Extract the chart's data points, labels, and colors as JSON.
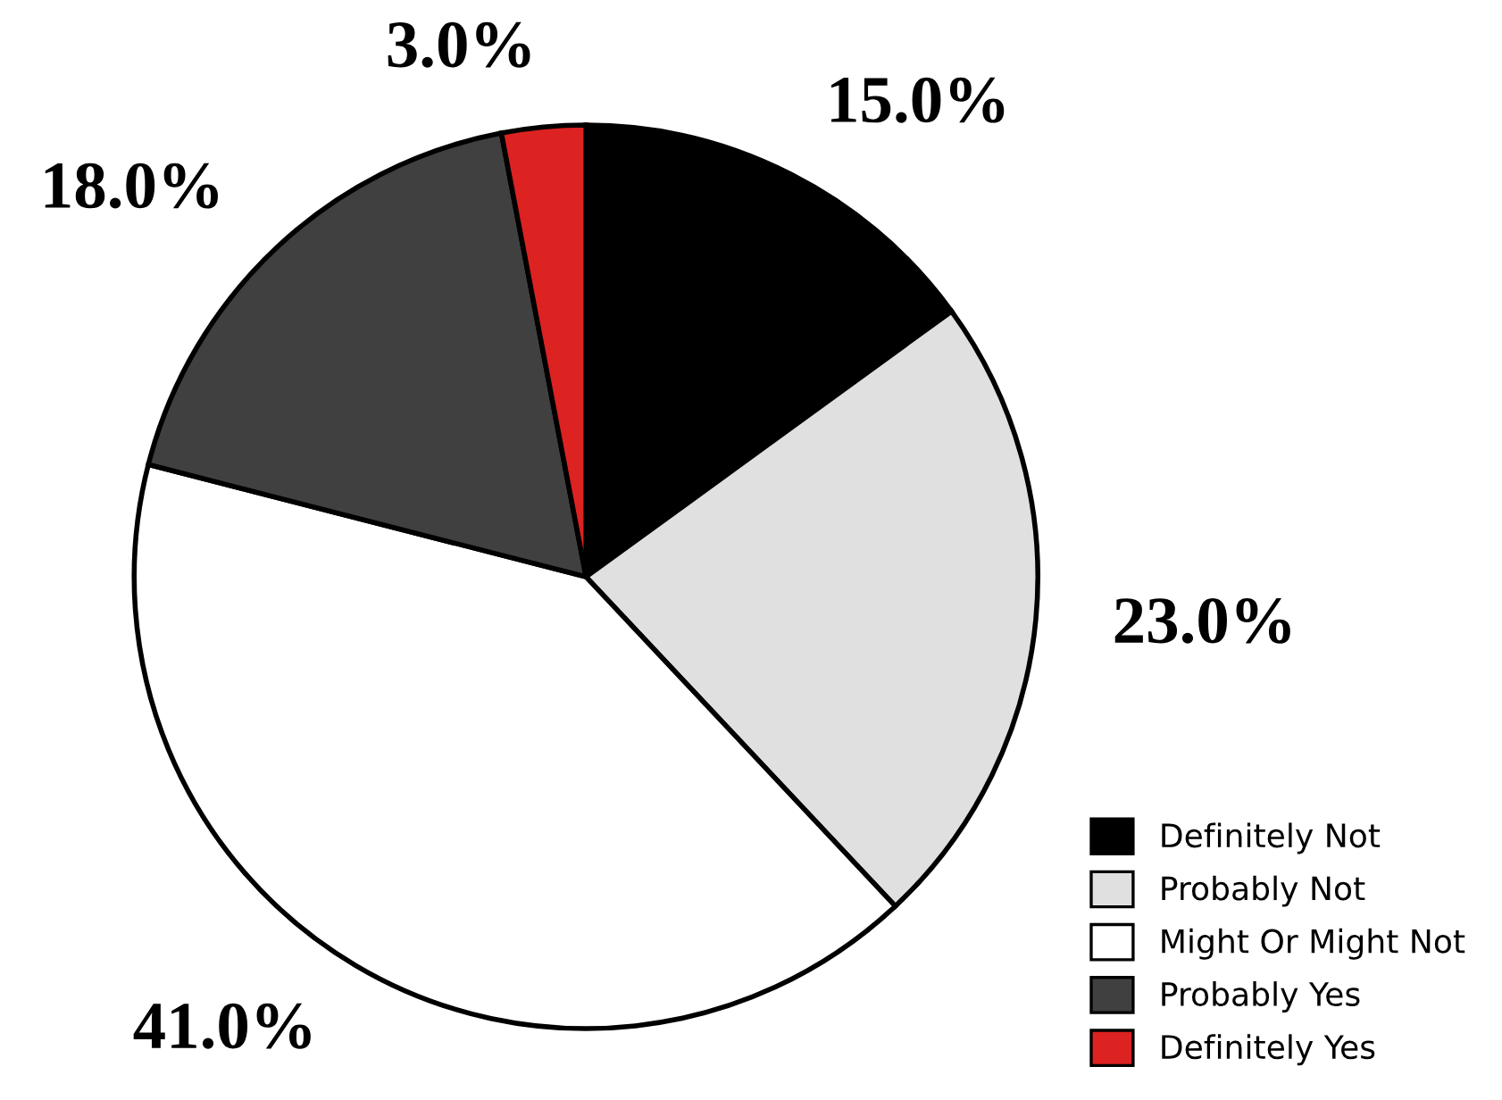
{
  "chart_data": {
    "type": "pie",
    "categories": [
      "Definitely Not",
      "Probably Not",
      "Might Or Might Not",
      "Probably Yes",
      "Definitely Yes"
    ],
    "values": [
      15.0,
      23.0,
      41.0,
      18.0,
      3.0
    ],
    "colors": [
      "#000000",
      "#e0e0e0",
      "#ffffff",
      "#404040",
      "#dd2222"
    ],
    "value_labels": [
      "15.0%",
      "23.0%",
      "41.0%",
      "18.0%",
      "3.0%"
    ],
    "legend": "bottom right"
  }
}
